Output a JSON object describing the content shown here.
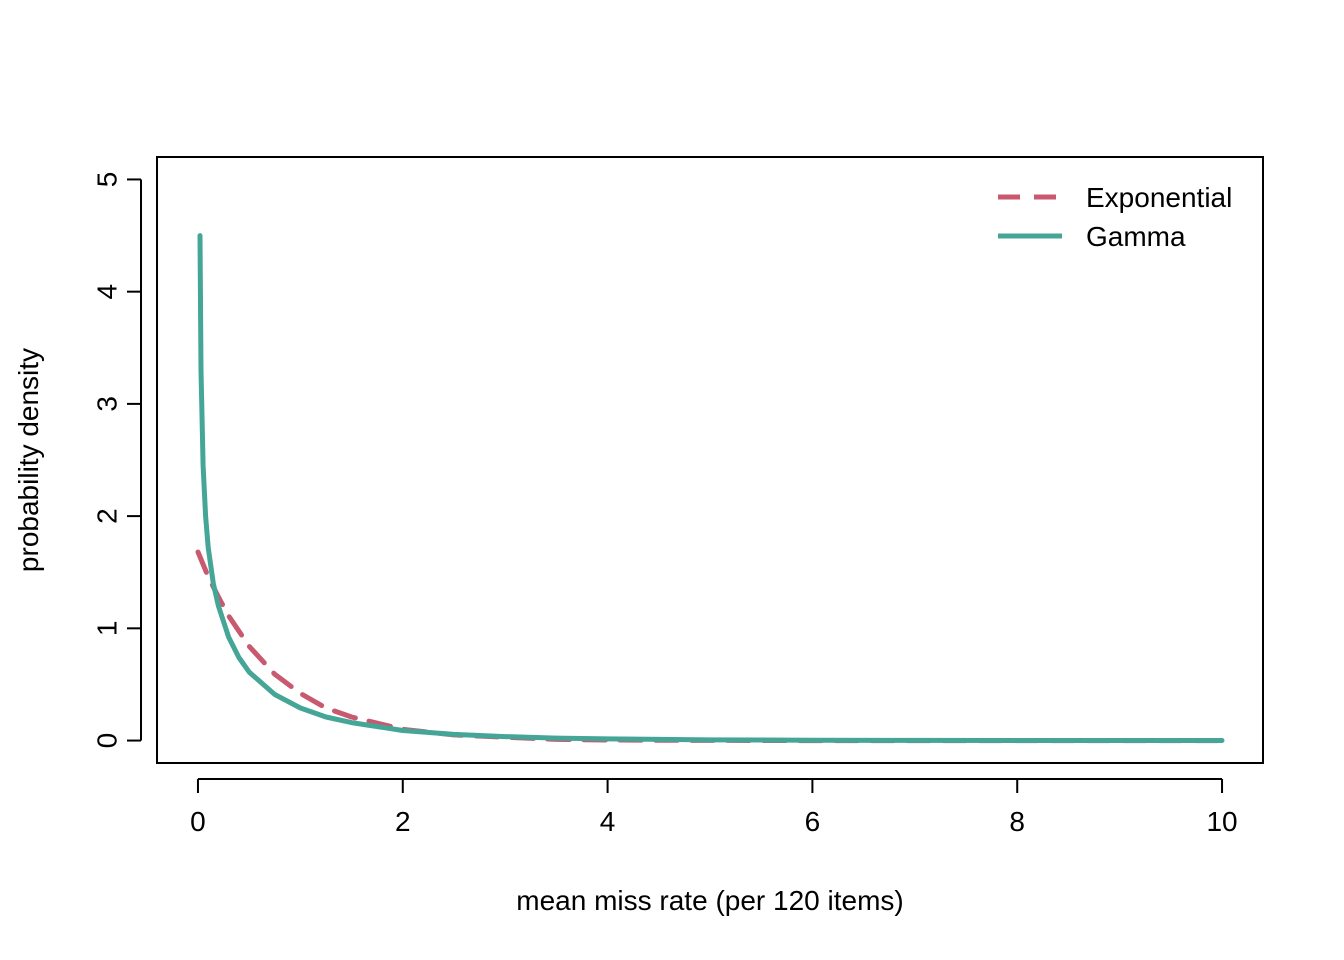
{
  "chart_data": {
    "type": "line",
    "title": "",
    "xlabel": "mean miss rate (per 120 items)",
    "ylabel": "probability density",
    "xlim": [
      -0.4,
      10.4
    ],
    "ylim": [
      -0.2,
      5.2
    ],
    "x_ticks": [
      0,
      2,
      4,
      6,
      8,
      10
    ],
    "y_ticks": [
      0,
      1,
      2,
      3,
      4,
      5
    ],
    "x_tick_labels": [
      "0",
      "2",
      "4",
      "6",
      "8",
      "10"
    ],
    "y_tick_labels": [
      "0",
      "1",
      "2",
      "3",
      "4",
      "5"
    ],
    "grid": false,
    "legend": {
      "position": "top-right",
      "frame": false
    },
    "series": [
      {
        "name": "Exponential",
        "color": "#c8596f",
        "dash": "dashed",
        "x": [
          0,
          0.1,
          0.2,
          0.3,
          0.5,
          0.75,
          1,
          1.25,
          1.5,
          2,
          2.5,
          3,
          3.5,
          4,
          5,
          6,
          8,
          10
        ],
        "y": [
          1.68,
          1.46,
          1.28,
          1.11,
          0.84,
          0.59,
          0.42,
          0.29,
          0.21,
          0.1,
          0.05,
          0.03,
          0.01,
          0.005,
          0.001,
          0,
          0,
          0
        ]
      },
      {
        "name": "Gamma",
        "color": "#45a697",
        "dash": "solid",
        "x": [
          0.02,
          0.03,
          0.05,
          0.075,
          0.1,
          0.15,
          0.2,
          0.3,
          0.4,
          0.5,
          0.75,
          1,
          1.25,
          1.5,
          2,
          2.5,
          3,
          3.5,
          4,
          5,
          6,
          7,
          8,
          9,
          10
        ],
        "y": [
          4.5,
          3.3,
          2.45,
          2.0,
          1.72,
          1.4,
          1.2,
          0.92,
          0.74,
          0.61,
          0.41,
          0.29,
          0.21,
          0.16,
          0.09,
          0.055,
          0.035,
          0.022,
          0.015,
          0.006,
          0.003,
          0.001,
          0.0005,
          0.0002,
          0.0001
        ]
      }
    ]
  }
}
